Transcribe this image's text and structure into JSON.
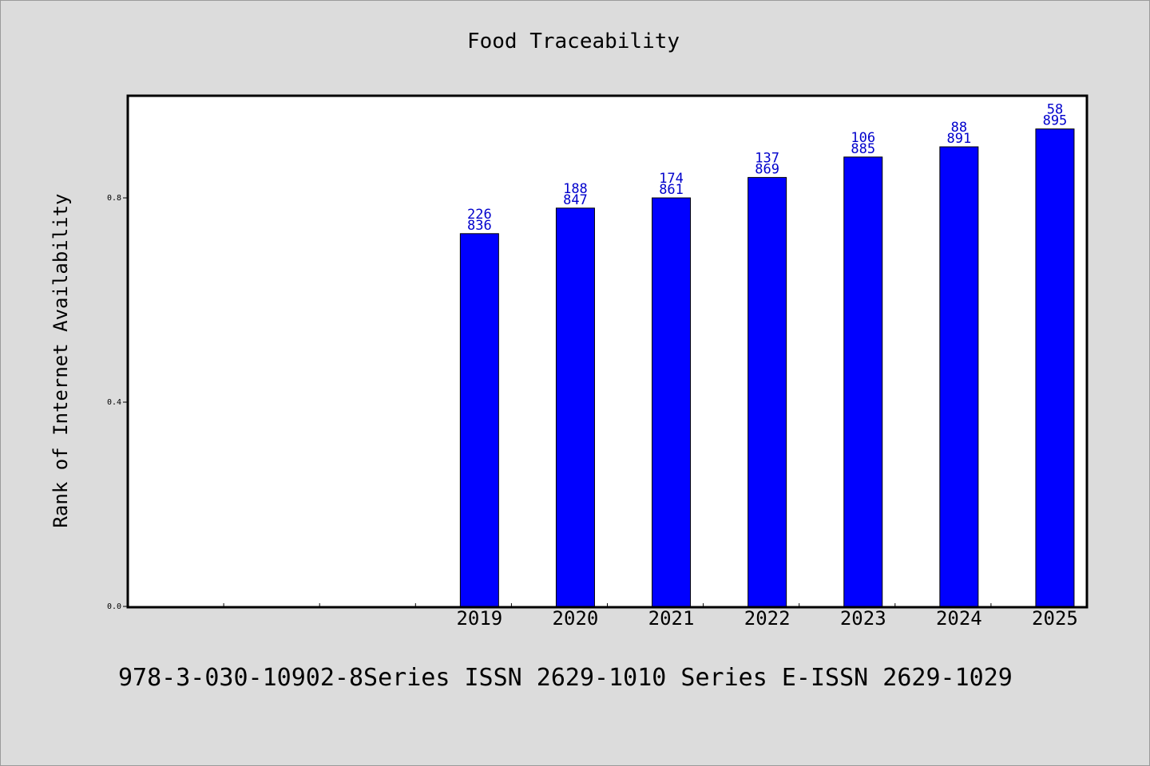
{
  "chart_data": {
    "type": "bar",
    "title": "Food Traceability",
    "ylabel": "Rank of Internet Availability",
    "xlabel": "",
    "categories": [
      "",
      "",
      "",
      "2019",
      "2020",
      "2021",
      "2022",
      "2023",
      "2024",
      "2025"
    ],
    "values": [
      null,
      null,
      null,
      0.73,
      0.78,
      0.8,
      0.84,
      0.88,
      0.9,
      0.935
    ],
    "data_labels": [
      null,
      null,
      null,
      [
        "226",
        "836"
      ],
      [
        "188",
        "847"
      ],
      [
        "174",
        "861"
      ],
      [
        "137",
        "869"
      ],
      [
        "106",
        "885"
      ],
      [
        "88",
        "891"
      ],
      [
        "58",
        "895"
      ]
    ],
    "yticks": [
      "0.0",
      "0.4",
      "0.8"
    ],
    "ylim": [
      0,
      1.0
    ],
    "grid": false,
    "bar_color": "#0000ff",
    "label_color": "#0000cc"
  },
  "footer": {
    "text": "978-3-030-10902-8Series ISSN 2629-1010 Series E-ISSN 2629-1029"
  }
}
